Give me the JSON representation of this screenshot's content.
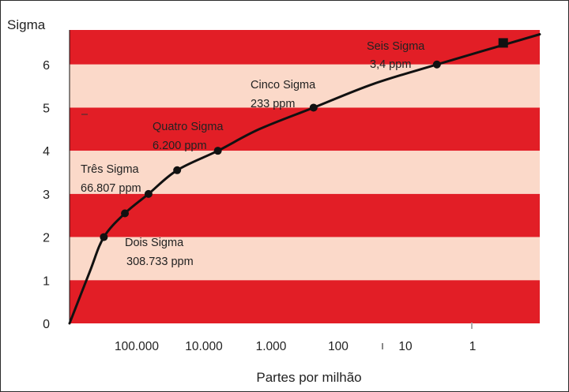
{
  "chart_data": {
    "type": "line",
    "ylabel": "Sigma",
    "xlabel": "Partes por milhão",
    "x_scale": "log-reversed",
    "xlim_ppm": [
      1000000,
      0.1
    ],
    "ylim": [
      0,
      6.8
    ],
    "band_colors": [
      "#e21e26",
      "#fbd9c9"
    ],
    "line_color": "#111111",
    "y_ticks": [
      {
        "value": 0,
        "label": "0"
      },
      {
        "value": 1,
        "label": "1"
      },
      {
        "value": 2,
        "label": "2"
      },
      {
        "value": 3,
        "label": "3"
      },
      {
        "value": 4,
        "label": "4"
      },
      {
        "value": 5,
        "label": "5"
      },
      {
        "value": 6,
        "label": "6"
      }
    ],
    "x_ticks": [
      {
        "value": 100000,
        "label": "100.000"
      },
      {
        "value": 10000,
        "label": "10.000"
      },
      {
        "value": 1000,
        "label": "1.000"
      },
      {
        "value": 100,
        "label": "100"
      },
      {
        "value": 10,
        "label": "10"
      },
      {
        "value": 1,
        "label": "1"
      }
    ],
    "series": [
      {
        "name": "Sigma",
        "x_ppm": [
          1000000,
          500000,
          308733,
          150000,
          66807,
          25000,
          6200,
          1500,
          233,
          30,
          3.4,
          0.1
        ],
        "y": [
          0,
          1.2,
          2.0,
          2.55,
          3.0,
          3.55,
          4.0,
          4.5,
          5.0,
          5.55,
          6.0,
          6.7
        ]
      }
    ],
    "points": [
      {
        "x_ppm": 308733,
        "y": 2.0
      },
      {
        "x_ppm": 150000,
        "y": 2.55
      },
      {
        "x_ppm": 66807,
        "y": 3.0
      },
      {
        "x_ppm": 25000,
        "y": 3.55
      },
      {
        "x_ppm": 6200,
        "y": 4.0
      },
      {
        "x_ppm": 233,
        "y": 5.0
      },
      {
        "x_ppm": 3.4,
        "y": 6.0
      }
    ],
    "end_marker": {
      "x_ppm": 0.35,
      "y": 6.5,
      "shape": "square"
    },
    "annotations": [
      {
        "name": "dois",
        "line1": "Dois Sigma",
        "line2": "308.733 ppm"
      },
      {
        "name": "tres",
        "line1": "Três Sigma",
        "line2": "66.807 ppm"
      },
      {
        "name": "quatro",
        "line1": "Quatro Sigma",
        "line2": "6.200 ppm"
      },
      {
        "name": "cinco",
        "line1": "Cinco Sigma",
        "line2": "233 ppm"
      },
      {
        "name": "seis",
        "line1": "Seis Sigma",
        "line2": "3,4 ppm"
      }
    ]
  }
}
